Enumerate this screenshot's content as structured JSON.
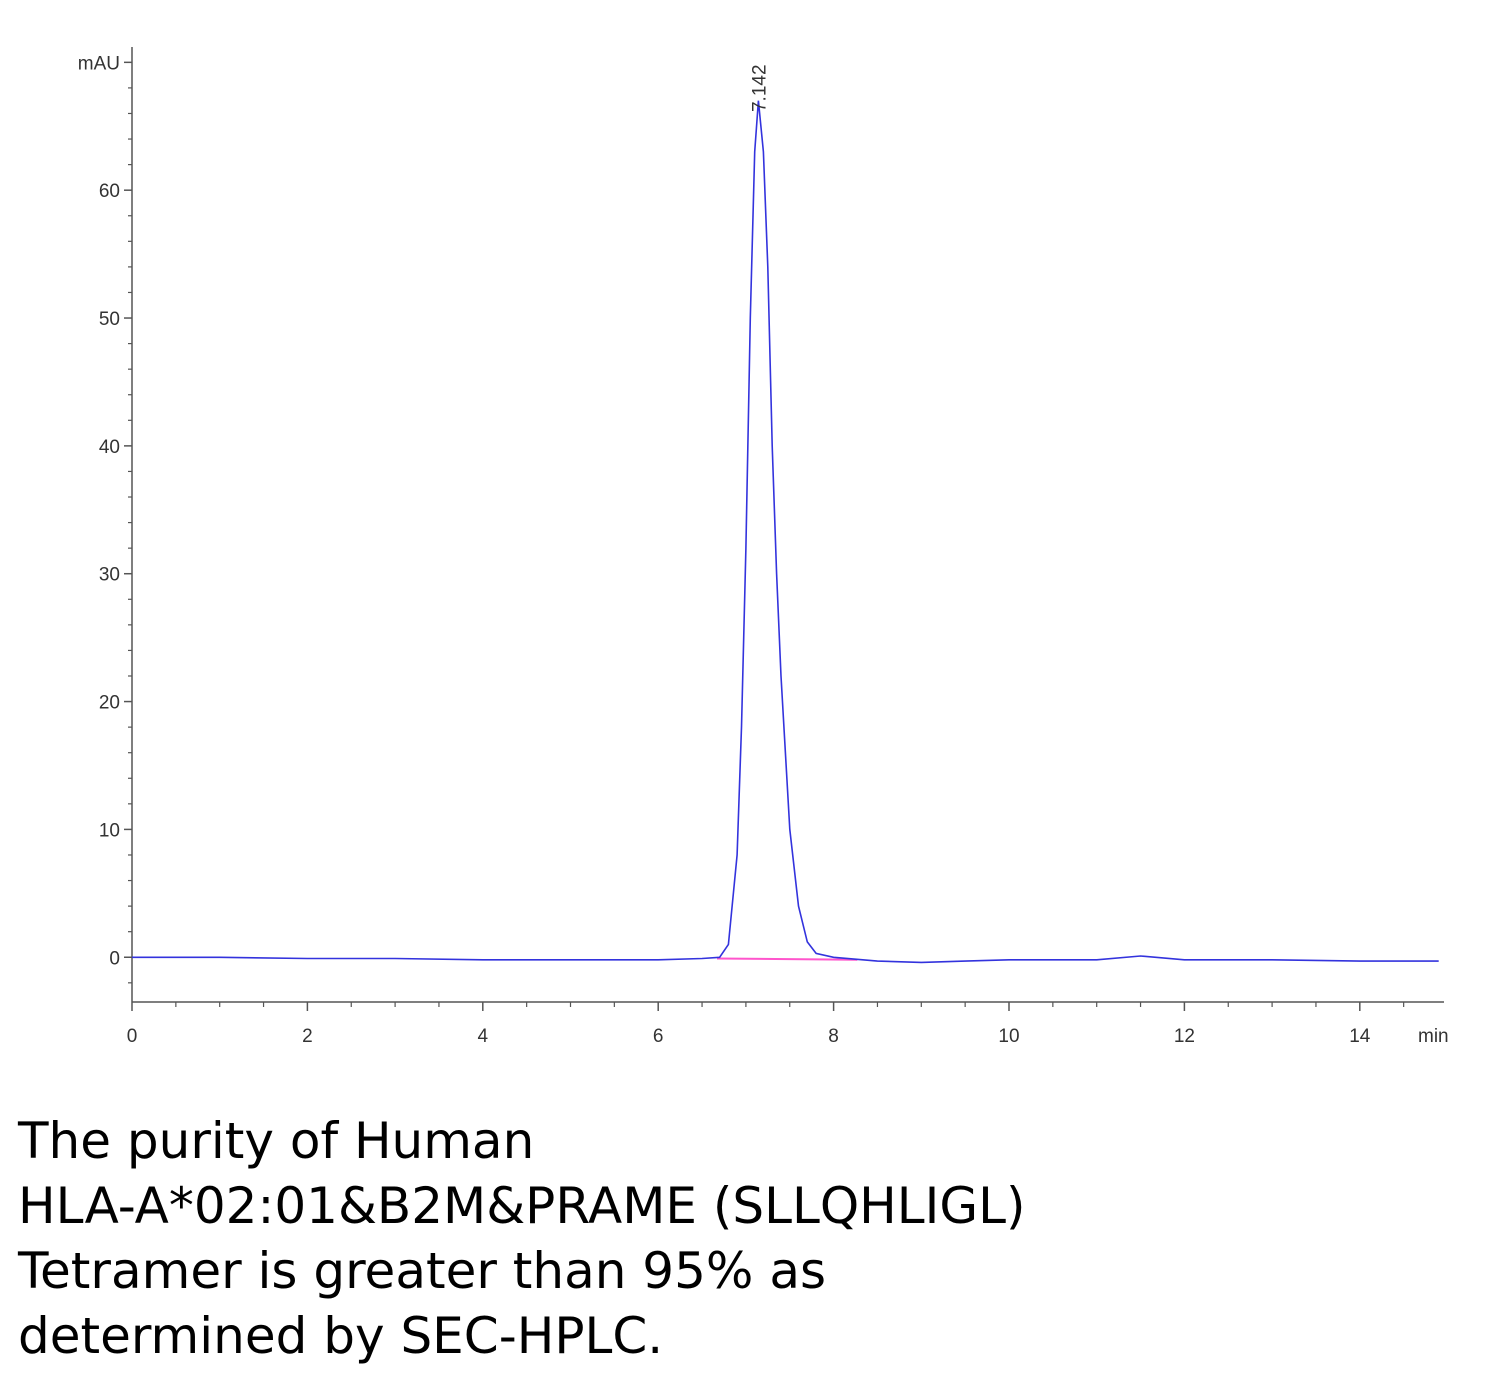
{
  "chart_data": {
    "type": "line",
    "x": [
      0,
      1,
      2,
      3,
      4,
      5,
      6,
      6.5,
      6.7,
      6.8,
      6.9,
      6.95,
      7.0,
      7.05,
      7.1,
      7.142,
      7.2,
      7.25,
      7.3,
      7.35,
      7.4,
      7.5,
      7.6,
      7.7,
      7.8,
      8.0,
      8.5,
      9.0,
      9.5,
      10,
      11,
      11.5,
      12,
      13,
      14,
      14.9
    ],
    "values": [
      0,
      0,
      -0.1,
      -0.1,
      -0.2,
      -0.2,
      -0.2,
      -0.1,
      0,
      1,
      8,
      18,
      32,
      50,
      63,
      67,
      63,
      54,
      40,
      30,
      22,
      10,
      4,
      1.2,
      0.3,
      0,
      -0.3,
      -0.4,
      -0.3,
      -0.2,
      -0.2,
      0.1,
      -0.2,
      -0.2,
      -0.3,
      -0.3
    ],
    "color": "#3333dd",
    "baseline": {
      "x": [
        6.67,
        8.27
      ],
      "values": [
        -0.1,
        -0.2
      ],
      "color": "#ff55cc"
    },
    "annotations": [
      {
        "text": "7.142",
        "x": 7.142
      }
    ],
    "xlabel": "min",
    "xlim": [
      0,
      15
    ],
    "ylim": [
      -3.5,
      71.2
    ],
    "xticks": [
      0,
      2,
      4,
      6,
      8,
      10,
      12,
      14
    ],
    "yticks": [
      0,
      10,
      20,
      30,
      40,
      50,
      60,
      {
        "value": 70,
        "label": "mAU"
      }
    ],
    "xminorticks": [
      0.5,
      1,
      1.5,
      2.5,
      3,
      3.5,
      4.5,
      5,
      5.5,
      6.5,
      7,
      7.5,
      8.5,
      9,
      9.5,
      10.5,
      11,
      11.5,
      12.5,
      13,
      13.5,
      14.5
    ],
    "yminorticks": [
      -2,
      2,
      4,
      6,
      8,
      12,
      14,
      16,
      18,
      22,
      24,
      26,
      28,
      32,
      34,
      36,
      38,
      42,
      44,
      46,
      48,
      52,
      54,
      56,
      58,
      62,
      64,
      66,
      68
    ],
    "caption": [
      "The purity of Human",
      "HLA-A*02:01&B2M&PRAME (SLLQHLIGL)",
      "Tetramer is greater than 95% as",
      "determined by SEC-HPLC."
    ]
  }
}
